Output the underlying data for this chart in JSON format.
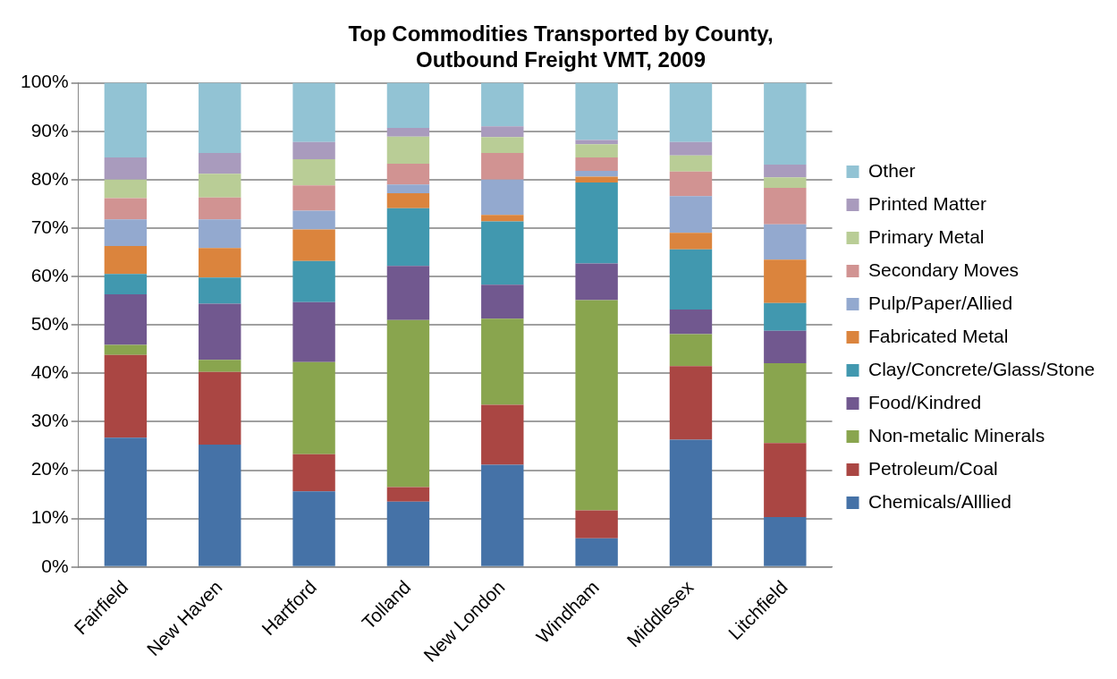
{
  "chart_data": {
    "type": "bar",
    "stacked": true,
    "title": "Top Commodities Transported by County,\nOutbound Freight VMT, 2009",
    "categories": [
      "Fairfield",
      "New Haven",
      "Hartford",
      "Tolland",
      "New London",
      "Windham",
      "Middlesex",
      "Litchfield"
    ],
    "series": [
      {
        "name": "Chemicals/Alllied",
        "color": "#4572a7",
        "values": [
          26.7,
          25.3,
          15.6,
          13.5,
          21.1,
          5.9,
          26.3,
          10.3
        ]
      },
      {
        "name": "Petroleum/Coal",
        "color": "#aa4643",
        "values": [
          17.1,
          15.0,
          7.7,
          3.0,
          12.4,
          5.8,
          15.2,
          15.3
        ]
      },
      {
        "name": "Non-metalic Minerals",
        "color": "#89a54e",
        "values": [
          2.1,
          2.5,
          19.0,
          34.5,
          17.8,
          43.4,
          6.6,
          16.5
        ]
      },
      {
        "name": "Food/Kindred",
        "color": "#71588f",
        "values": [
          10.4,
          11.6,
          12.4,
          11.2,
          7.0,
          7.6,
          5.1,
          6.7
        ]
      },
      {
        "name": "Clay/Concrete/Glass/Stone",
        "color": "#4198af",
        "values": [
          4.2,
          5.4,
          8.5,
          11.9,
          13.1,
          16.7,
          12.4,
          5.7
        ]
      },
      {
        "name": "Fabricated Metal",
        "color": "#db843d",
        "values": [
          5.8,
          6.1,
          6.5,
          3.1,
          1.3,
          1.2,
          3.4,
          9.0
        ]
      },
      {
        "name": "Pulp/Paper/Allied",
        "color": "#93a9cf",
        "values": [
          5.5,
          5.9,
          3.9,
          1.8,
          7.3,
          1.2,
          7.6,
          7.3
        ]
      },
      {
        "name": "Secondary Moves",
        "color": "#d19392",
        "values": [
          4.4,
          4.5,
          5.2,
          4.3,
          5.5,
          2.8,
          5.1,
          7.5
        ]
      },
      {
        "name": "Primary Metal",
        "color": "#b9cd96",
        "values": [
          3.8,
          4.9,
          5.4,
          5.6,
          3.3,
          2.7,
          3.3,
          2.2
        ]
      },
      {
        "name": "Printed Matter",
        "color": "#a99bbd",
        "values": [
          4.6,
          4.3,
          3.6,
          1.8,
          2.2,
          0.9,
          2.8,
          2.6
        ]
      },
      {
        "name": "Other",
        "color": "#92c3d4",
        "values": [
          15.4,
          14.5,
          12.2,
          9.3,
          9.0,
          11.8,
          12.2,
          16.9
        ]
      }
    ],
    "ylim": [
      0,
      100
    ],
    "yticks": [
      {
        "value": 0,
        "label": "0%"
      },
      {
        "value": 10,
        "label": "10%"
      },
      {
        "value": 20,
        "label": "20%"
      },
      {
        "value": 30,
        "label": "30%"
      },
      {
        "value": 40,
        "label": "40%"
      },
      {
        "value": 50,
        "label": "50%"
      },
      {
        "value": 60,
        "label": "60%"
      },
      {
        "value": 70,
        "label": "70%"
      },
      {
        "value": 80,
        "label": "80%"
      },
      {
        "value": 90,
        "label": "90%"
      },
      {
        "value": 100,
        "label": "100%"
      }
    ],
    "grid": "y",
    "legend": "right"
  }
}
